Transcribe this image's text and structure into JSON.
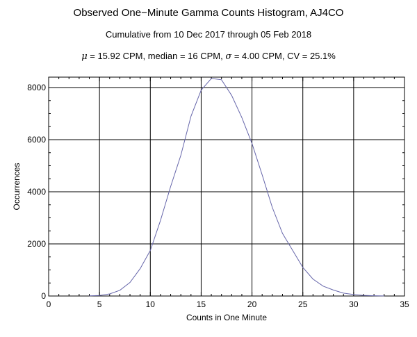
{
  "title": "Observed One−Minute Gamma Counts Histogram, AJ4CO",
  "subtitle": "Cumulative from 10 Dec 2017 through 05 Feb 2018",
  "stats": {
    "mu_symbol": "μ",
    "mu_text": " = 15.92 CPM,   median = 16 CPM,   ",
    "sigma_symbol": "σ",
    "sigma_text": " = 4.00 CPM,   CV = 25.1%"
  },
  "chart_data": {
    "type": "line",
    "title": "Observed One−Minute Gamma Counts Histogram, AJ4CO",
    "subtitle": "Cumulative from 10 Dec 2017 through 05 Feb 2018",
    "xlabel": "Counts in One Minute",
    "ylabel": "Occurrences",
    "xlim": [
      0,
      35
    ],
    "ylim": [
      0,
      8400
    ],
    "xticks": [
      0,
      5,
      10,
      15,
      20,
      25,
      30,
      35
    ],
    "yticks": [
      0,
      2000,
      4000,
      6000,
      8000
    ],
    "grid": true,
    "series_color": "#6666aa",
    "series": [
      {
        "x": [
          4,
          5,
          6,
          7,
          8,
          9,
          10,
          11,
          12,
          13,
          14,
          15,
          16,
          17,
          18,
          19,
          20,
          21,
          22,
          23,
          24,
          25,
          26,
          27,
          28,
          29,
          30,
          31,
          32,
          33
        ],
        "values": [
          5,
          20,
          80,
          220,
          520,
          1050,
          1750,
          2900,
          4200,
          5400,
          6900,
          7900,
          8350,
          8300,
          7700,
          6850,
          5850,
          4650,
          3400,
          2400,
          1750,
          1100,
          650,
          380,
          230,
          110,
          55,
          25,
          10,
          3
        ]
      }
    ]
  }
}
